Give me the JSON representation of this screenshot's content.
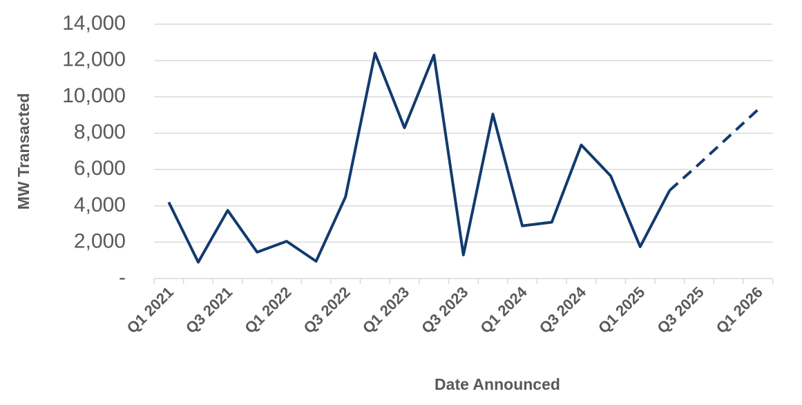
{
  "chart_data": {
    "type": "line",
    "x_label": "Date Announced",
    "y_label": "MW Transacted",
    "categories": [
      "Q1 2021",
      null,
      "Q3 2021",
      null,
      "Q1 2022",
      null,
      "Q3 2022",
      null,
      "Q1 2023",
      null,
      "Q3 2023",
      null,
      "Q1 2024",
      null,
      "Q3 2024",
      null,
      "Q1 2025",
      null,
      "Q3 2025",
      null,
      "Q1 2026"
    ],
    "series": [
      {
        "color": "#123a6e",
        "values": [
          4200,
          900,
          3750,
          1450,
          2050,
          950,
          4500,
          12400,
          8300,
          12300,
          1300,
          9050,
          2900,
          3100,
          7350,
          5650,
          1750,
          4850,
          null,
          null,
          null
        ]
      },
      {
        "color": "#123a6e",
        "dashed": true,
        "values": [
          null,
          null,
          null,
          null,
          null,
          null,
          null,
          null,
          null,
          null,
          null,
          null,
          null,
          null,
          null,
          null,
          null,
          4850,
          6300,
          7800,
          9300
        ]
      }
    ],
    "ylim": [
      0,
      14000
    ],
    "yticks": [
      {
        "value": 0,
        "label": "-"
      },
      {
        "value": 2000,
        "label": "2,000"
      },
      {
        "value": 4000,
        "label": "4,000"
      },
      {
        "value": 6000,
        "label": "6,000"
      },
      {
        "value": 8000,
        "label": "8,000"
      },
      {
        "value": 10000,
        "label": "10,000"
      },
      {
        "value": 12000,
        "label": "12,000"
      },
      {
        "value": 14000,
        "label": "14,000"
      }
    ],
    "grid": true
  }
}
